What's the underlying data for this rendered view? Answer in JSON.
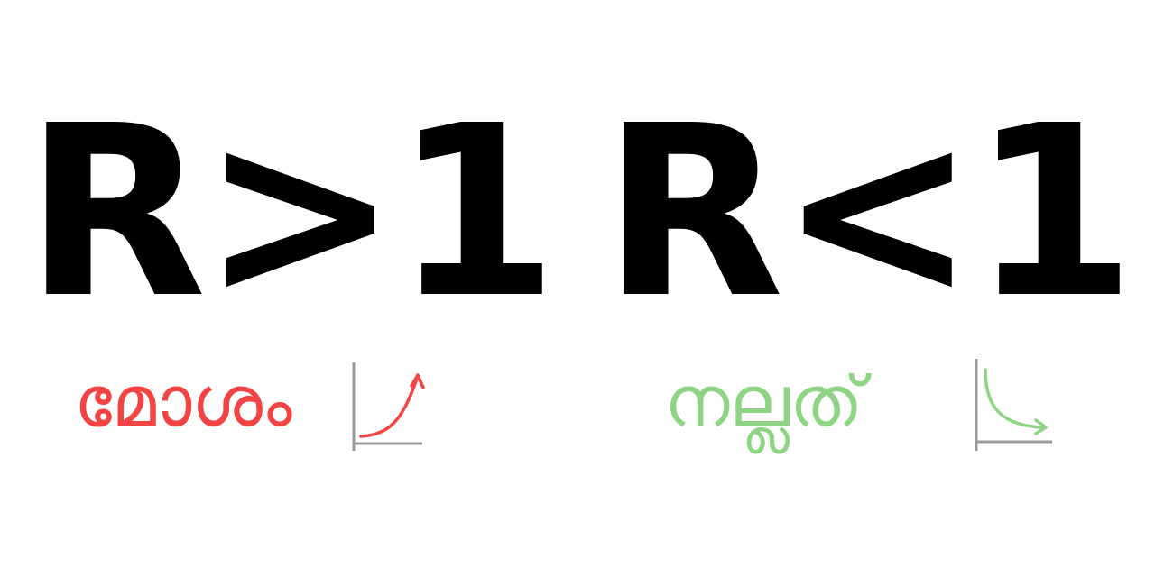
{
  "left": {
    "formula": "R>1",
    "caption": "മോശം",
    "caption_color": "#f24444",
    "icon": "rising-trend-icon"
  },
  "right": {
    "formula": "R<1",
    "caption": "നല്ലത്",
    "caption_color": "#8fd485",
    "icon": "falling-trend-icon"
  },
  "axis_color": "#9a9a9a"
}
